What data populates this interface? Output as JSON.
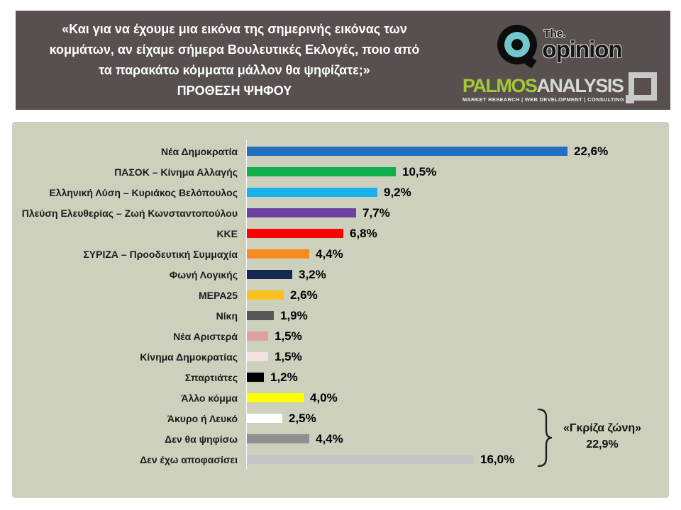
{
  "header": {
    "question_lines": [
      "«Και για να έχουμε μια εικόνα της σημερινής εικόνας των",
      "κομμάτων, αν είχαμε σήμερα Βουλευτικές Εκλογές, ποιο από",
      "τα παρακάτω κόμματα μάλλον θα ψηφίζατε;»"
    ],
    "title": "ΠΡΟΘΕΣΗ ΨΗΦΟΥ",
    "logos": {
      "opinion": {
        "the": "The.",
        "name": "opinion"
      },
      "palmos": {
        "name_green": "PALMOS",
        "name_gray": "ANALYSIS",
        "tagline": "MARKET RESEARCH | WEB DEVELOPMENT | CONSULTING"
      }
    }
  },
  "colors": {
    "header_bg": "#57504E",
    "panel_bg": "#CDD0BC",
    "opinion_teal": "#72C7CD",
    "palmos_green": "#A3C838"
  },
  "chart_data": {
    "type": "bar",
    "orientation": "horizontal",
    "unit": "%",
    "xlim": [
      0,
      23
    ],
    "grid": false,
    "legend": false,
    "categories": [
      "Νέα Δημοκρατία",
      "ΠΑΣΟΚ – Κίνημα Αλλαγής",
      "Ελληνική Λύση – Κυριάκος Βελόπουλος",
      "Πλεύση Ελευθερίας – Ζωή Κωνσταντοπούλου",
      "ΚΚΕ",
      "ΣΥΡΙΖΑ – Προοδευτική Συμμαχία",
      "Φωνή Λογικής",
      "ΜΕΡΑ25",
      "Νίκη",
      "Νέα Αριστερά",
      "Κίνημα Δημοκρατίας",
      "Σπαρτιάτες",
      "Άλλο κόμμα",
      "Άκυρο ή Λευκό",
      "Δεν θα ψηφίσω",
      "Δεν έχω αποφασίσει"
    ],
    "values": [
      22.6,
      10.5,
      9.2,
      7.7,
      6.8,
      4.4,
      3.2,
      2.6,
      1.9,
      1.5,
      1.5,
      1.2,
      4.0,
      2.5,
      4.4,
      16.0
    ],
    "value_labels": [
      "22,6%",
      "10,5%",
      "9,2%",
      "7,7%",
      "6,8%",
      "4,4%",
      "3,2%",
      "2,6%",
      "1,9%",
      "1,5%",
      "1,5%",
      "1,2%",
      "4,0%",
      "2,5%",
      "4,4%",
      "16,0%"
    ],
    "colors": [
      "#1F6EC0",
      "#0FAD4B",
      "#16B0EA",
      "#6C3FA3",
      "#FE0000",
      "#F68B1F",
      "#152A52",
      "#FCC01D",
      "#575757",
      "#DFA0A0",
      "#F2E1DD",
      "#000000",
      "#FFFF00",
      "#FFFFFF",
      "#909090",
      "#C6C6C9"
    ],
    "annotation": {
      "label": "«Γκρίζα ζώνη»",
      "value_label": "22,9%",
      "covers": [
        "Άκυρο ή Λευκό",
        "Δεν θα ψηφίσω",
        "Δεν έχω αποφασίσει"
      ]
    }
  }
}
